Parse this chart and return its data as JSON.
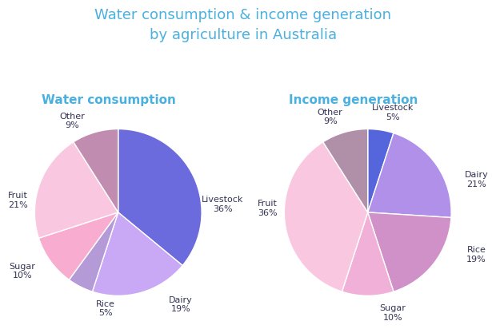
{
  "title": "Water consumption & income generation\nby agriculture in Australia",
  "title_color": "#4ab0e0",
  "title_fontsize": 13,
  "left_title": "Water consumption",
  "right_title": "Income generation",
  "subtitle_color": "#4ab0e0",
  "subtitle_fontsize": 11,
  "water_labels": [
    "Livestock",
    "Dairy",
    "Rice",
    "Sugar",
    "Fruit",
    "Other"
  ],
  "water_values": [
    36,
    19,
    5,
    10,
    21,
    9
  ],
  "water_colors": [
    "#6b6bdd",
    "#c9a8f5",
    "#b59ad8",
    "#f7acd0",
    "#f9c8e0",
    "#c08cb0"
  ],
  "water_label_texts": [
    "Livestock\n36%",
    "Dairy\n19%",
    "Rice\n5%",
    "Sugar\n10%",
    "Fruit\n21%",
    "Other\n9%"
  ],
  "income_labels": [
    "Livestock",
    "Dairy",
    "Rice",
    "Sugar",
    "Fruit",
    "Other"
  ],
  "income_values": [
    5,
    21,
    19,
    10,
    36,
    9
  ],
  "income_colors": [
    "#5566dd",
    "#b090e8",
    "#d090c8",
    "#f0b0d8",
    "#f9c8e0",
    "#b090a8"
  ],
  "income_label_texts": [
    "Livestock\n5%",
    "Dairy\n21%",
    "Rice\n19%",
    "Sugar\n10%",
    "Fruit\n36%",
    "Other\n9%"
  ],
  "background_color": "#ffffff",
  "label_fontsize": 8,
  "label_color": "#333355"
}
